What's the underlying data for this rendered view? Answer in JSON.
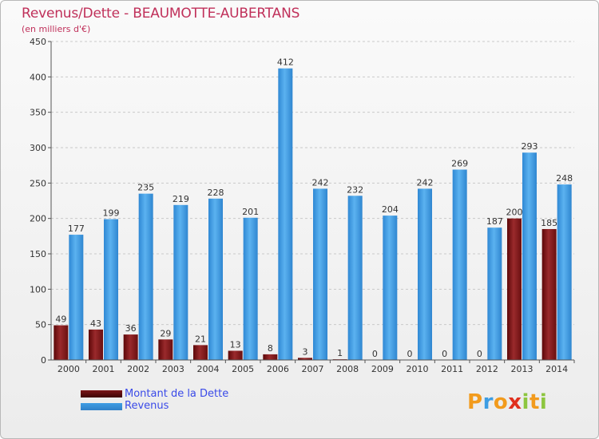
{
  "chart_data": {
    "type": "bar",
    "title": "Revenus/Dette - BEAUMOTTE-AUBERTANS",
    "subtitle": "(en milliers d'€)",
    "xlabel": "",
    "ylabel": "",
    "ylim": [
      0,
      450
    ],
    "yticks": [
      0,
      50,
      100,
      150,
      200,
      250,
      300,
      350,
      400,
      450
    ],
    "grid": "horizontal dashed",
    "legend_position": "bottom-left",
    "categories": [
      "2000",
      "2001",
      "2002",
      "2003",
      "2004",
      "2005",
      "2006",
      "2007",
      "2008",
      "2009",
      "2010",
      "2011",
      "2012",
      "2013",
      "2014"
    ],
    "series": [
      {
        "name": "Montant de la Dette",
        "color": "#7a1518",
        "values": [
          49,
          43,
          36,
          29,
          21,
          13,
          8,
          3,
          1,
          0,
          0,
          0,
          0,
          200,
          185
        ]
      },
      {
        "name": "Revenus",
        "color": "#3f9de4",
        "values": [
          177,
          199,
          235,
          219,
          228,
          201,
          412,
          242,
          232,
          204,
          242,
          269,
          187,
          293,
          248
        ]
      }
    ]
  },
  "logo": {
    "letters": [
      "P",
      "r",
      "o",
      "x",
      "i",
      "t",
      "i"
    ],
    "colors": [
      "#f29b1d",
      "#3d9de3",
      "#f29b1d",
      "#e0301e",
      "#8dc63f",
      "#f29b1d",
      "#8dc63f"
    ]
  }
}
